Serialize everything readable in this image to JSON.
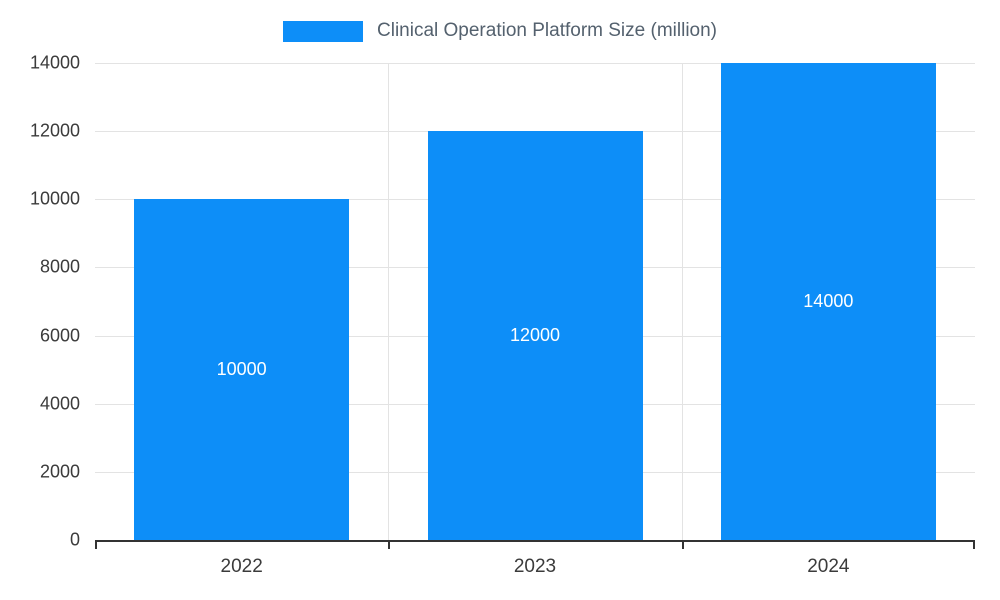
{
  "chart_data": {
    "type": "bar",
    "title": "Clinical Operation Platform Size (million)",
    "categories": [
      "2022",
      "2023",
      "2024"
    ],
    "values": [
      10000,
      12000,
      14000
    ],
    "value_labels": [
      "10000",
      "12000",
      "14000"
    ],
    "xlabel": "",
    "ylabel": "",
    "ylim": [
      0,
      14000
    ],
    "ytick_step": 2000,
    "yticks": [
      "0",
      "2000",
      "4000",
      "6000",
      "8000",
      "10000",
      "12000",
      "14000"
    ],
    "grid": "horizontal-and-category-boundaries",
    "legend_position": "top-center",
    "bar_color": "#0d8ef8",
    "bar_label_color": "#ffffff",
    "grid_color": "#e3e3e3",
    "axis_color": "#333333",
    "tick_label_color": "#3b3b3b",
    "title_color": "#54616e"
  }
}
